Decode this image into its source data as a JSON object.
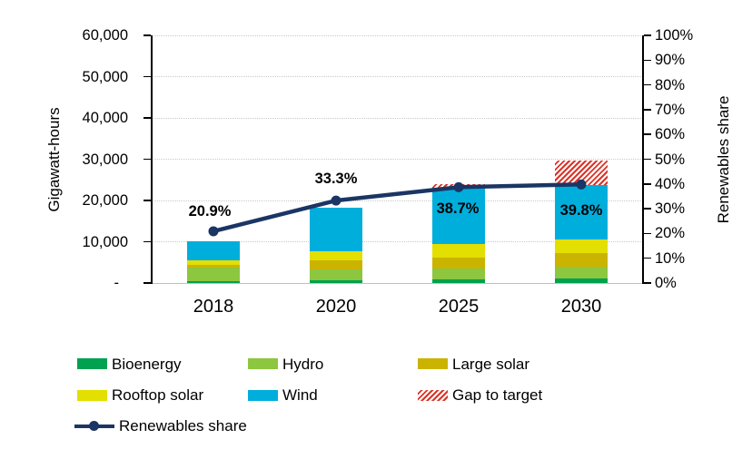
{
  "chart_data": {
    "type": "bar",
    "variant": "stacked-column-with-line",
    "title": "",
    "categories": [
      "2018",
      "2020",
      "2025",
      "2030"
    ],
    "unit": "Gigawatt-hours",
    "series": [
      {
        "name": "Bioenergy",
        "color": "#00A14F",
        "values": [
          500,
          600,
          900,
          1000
        ]
      },
      {
        "name": "Hydro",
        "color": "#8DC63F",
        "values": [
          3200,
          2800,
          2600,
          2900
        ]
      },
      {
        "name": "Large solar",
        "color": "#CBB400",
        "values": [
          700,
          2000,
          2700,
          3300
        ]
      },
      {
        "name": "Rooftop solar",
        "color": "#E3DF00",
        "values": [
          1000,
          2400,
          3300,
          3300
        ]
      },
      {
        "name": "Wind",
        "color": "#00AEDC",
        "values": [
          4700,
          10500,
          13600,
          13200
        ]
      },
      {
        "name": "Gap to target",
        "color": "#DA3327",
        "pattern": "diagonal-hatch",
        "values": [
          0,
          0,
          800,
          5900
        ]
      }
    ],
    "line_series": {
      "name": "Renewables share",
      "color": "#1B3564",
      "values_pct": [
        20.9,
        33.3,
        38.7,
        39.8
      ],
      "data_labels": [
        "20.9%",
        "33.3%",
        "38.7%",
        "39.8%"
      ],
      "label_positions": [
        "above",
        "above",
        "below",
        "below"
      ]
    },
    "left_axis": {
      "title": "Gigawatt-hours",
      "min": 0,
      "max": 60000,
      "tick_labels": [
        "60,000",
        "50,000",
        "40,000",
        "30,000",
        "20,000",
        "10,000",
        "-"
      ]
    },
    "right_axis": {
      "title": "Renewables share",
      "min": 0,
      "max": 100,
      "tick_labels": [
        "100%",
        "90%",
        "80%",
        "70%",
        "60%",
        "50%",
        "40%",
        "30%",
        "20%",
        "10%",
        "0%"
      ]
    },
    "grid": "horizontal-dotted",
    "legend_position": "bottom-left"
  },
  "legend": {
    "rows": [
      [
        {
          "label": "Bioenergy",
          "swatch": "solid",
          "color": "#00A14F"
        },
        {
          "label": "Hydro",
          "swatch": "solid",
          "color": "#8DC63F"
        },
        {
          "label": "Large solar",
          "swatch": "solid",
          "color": "#CBB400"
        }
      ],
      [
        {
          "label": "Rooftop solar",
          "swatch": "solid",
          "color": "#E3DF00"
        },
        {
          "label": "Wind",
          "swatch": "solid",
          "color": "#00AEDC"
        },
        {
          "label": "Gap to target",
          "swatch": "hatch",
          "color": "#DA3327"
        }
      ],
      [
        {
          "label": "Renewables share",
          "swatch": "line-marker",
          "color": "#1B3564"
        }
      ]
    ]
  }
}
